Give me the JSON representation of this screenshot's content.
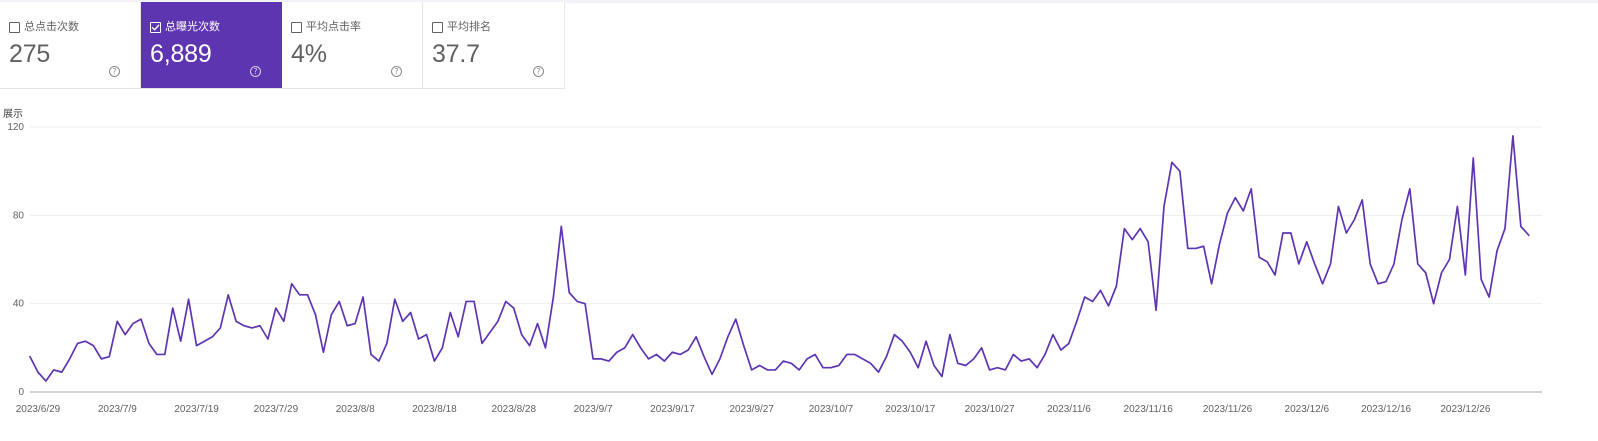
{
  "metrics": [
    {
      "label": "总点击次数",
      "value": "275",
      "checked": false,
      "help_icon": "question-circle-icon"
    },
    {
      "label": "总曝光次数",
      "value": "6,889",
      "checked": true,
      "help_icon": "question-circle-icon"
    },
    {
      "label": "平均点击率",
      "value": "4%",
      "checked": false,
      "help_icon": "question-circle-icon"
    },
    {
      "label": "平均排名",
      "value": "37.7",
      "checked": false,
      "help_icon": "question-circle-icon"
    }
  ],
  "colors": {
    "accent": "#5e35b1",
    "line": "#5e35b1",
    "grid": "#eeeeee",
    "axis": "#a7a7a7",
    "text": "#616161"
  },
  "chart_data": {
    "type": "line",
    "title": "",
    "xlabel": "",
    "ylabel": "展示",
    "ylim": [
      0,
      120
    ],
    "yticks": [
      0,
      40,
      80,
      120
    ],
    "grid": true,
    "x_start": "2023/6/29",
    "x_end": "2024/1/2",
    "x_tick_labels": [
      "2023/6/29",
      "2023/7/9",
      "2023/7/19",
      "2023/7/29",
      "2023/8/8",
      "2023/8/18",
      "2023/8/28",
      "2023/9/7",
      "2023/9/17",
      "2023/9/27",
      "2023/10/7",
      "2023/10/17",
      "2023/10/27",
      "2023/11/6",
      "2023/11/16",
      "2023/11/26",
      "2023/12/6",
      "2023/12/16",
      "2023/12/26"
    ],
    "series": [
      {
        "name": "总曝光次数",
        "values": [
          16,
          9,
          5,
          10,
          9,
          15,
          22,
          23,
          21,
          15,
          16,
          32,
          26,
          31,
          33,
          22,
          17,
          17,
          38,
          23,
          42,
          21,
          23,
          25,
          29,
          44,
          32,
          30,
          29,
          30,
          24,
          38,
          32,
          49,
          44,
          44,
          35,
          18,
          35,
          41,
          30,
          31,
          43,
          17,
          14,
          22,
          42,
          32,
          36,
          24,
          26,
          14,
          20,
          36,
          25,
          41,
          41,
          22,
          27,
          32,
          41,
          38,
          26,
          21,
          31,
          20,
          43,
          75,
          45,
          41,
          40,
          15,
          15,
          14,
          18,
          20,
          26,
          20,
          15,
          17,
          14,
          18,
          17,
          19,
          25,
          16,
          8,
          15,
          25,
          33,
          21,
          10,
          12,
          10,
          10,
          14,
          13,
          10,
          15,
          17,
          11,
          11,
          12,
          17,
          17,
          15,
          13,
          9,
          16,
          26,
          23,
          18,
          11,
          23,
          12,
          7,
          26,
          13,
          12,
          15,
          20,
          10,
          11,
          10,
          17,
          14,
          15,
          11,
          17,
          26,
          19,
          22,
          32,
          43,
          41,
          46,
          39,
          48,
          74,
          69,
          74,
          68,
          37,
          84,
          104,
          100,
          65,
          65,
          66,
          49,
          67,
          81,
          88,
          82,
          92,
          61,
          59,
          53,
          72,
          72,
          58,
          68,
          58,
          49,
          58,
          84,
          72,
          78,
          87,
          58,
          49,
          50,
          58,
          78,
          92,
          58,
          54,
          40,
          54,
          60,
          84,
          53,
          106,
          51,
          43,
          64,
          74,
          116,
          75,
          71
        ]
      }
    ]
  }
}
